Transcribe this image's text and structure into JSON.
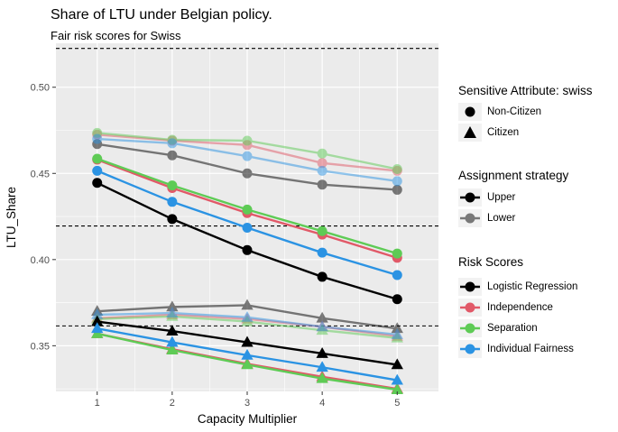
{
  "chart_data": {
    "type": "line",
    "title": "Share of LTU under Belgian policy.",
    "subtitle": "Fair risk scores for Swiss",
    "xlabel": "Capacity Multiplier",
    "ylabel": "LTU_Share",
    "x": [
      1,
      2,
      3,
      4,
      5
    ],
    "xlim": [
      0.45,
      5.55
    ],
    "ylim": [
      0.3235,
      0.5255
    ],
    "xticks": [
      1,
      2,
      3,
      4,
      5
    ],
    "yticks": [
      0.35,
      0.4,
      0.45,
      0.5
    ],
    "ytick_labels": [
      "0.35",
      "0.40",
      "0.45",
      "0.50"
    ],
    "grid": true,
    "reference_lines": [
      0.5225,
      0.4195,
      0.3615
    ],
    "legend_position": "right",
    "colors": {
      "logistic_regression": "#000000",
      "independence": "#e15968",
      "separation": "#5ecb55",
      "individual_fairness": "#2b93e3",
      "panel_background": "#ebebeb",
      "grid": "#ffffff"
    },
    "series": [
      {
        "score": "Logistic Regression",
        "strategy": "Upper",
        "attribute": "Non-Citizen",
        "values": [
          0.4445,
          0.4235,
          0.4055,
          0.39,
          0.377
        ]
      },
      {
        "score": "Independence",
        "strategy": "Upper",
        "attribute": "Non-Citizen",
        "values": [
          0.458,
          0.4415,
          0.427,
          0.4145,
          0.401
        ]
      },
      {
        "score": "Separation",
        "strategy": "Upper",
        "attribute": "Non-Citizen",
        "values": [
          0.4585,
          0.443,
          0.429,
          0.4165,
          0.4035
        ]
      },
      {
        "score": "Individual Fairness",
        "strategy": "Upper",
        "attribute": "Non-Citizen",
        "values": [
          0.4515,
          0.4335,
          0.4185,
          0.404,
          0.391
        ]
      },
      {
        "score": "Logistic Regression",
        "strategy": "Lower",
        "attribute": "Non-Citizen",
        "values": [
          0.467,
          0.4605,
          0.45,
          0.4435,
          0.4405
        ]
      },
      {
        "score": "Independence",
        "strategy": "Lower",
        "attribute": "Non-Citizen",
        "values": [
          0.4725,
          0.469,
          0.4665,
          0.456,
          0.4515
        ]
      },
      {
        "score": "Separation",
        "strategy": "Lower",
        "attribute": "Non-Citizen",
        "values": [
          0.4735,
          0.4695,
          0.469,
          0.4615,
          0.4525
        ]
      },
      {
        "score": "Individual Fairness",
        "strategy": "Lower",
        "attribute": "Non-Citizen",
        "values": [
          0.47,
          0.4675,
          0.46,
          0.4515,
          0.4455
        ]
      },
      {
        "score": "Logistic Regression",
        "strategy": "Upper",
        "attribute": "Citizen",
        "values": [
          0.364,
          0.3585,
          0.352,
          0.3455,
          0.339
        ]
      },
      {
        "score": "Independence",
        "strategy": "Upper",
        "attribute": "Citizen",
        "values": [
          0.357,
          0.348,
          0.3395,
          0.332,
          0.325
        ]
      },
      {
        "score": "Separation",
        "strategy": "Upper",
        "attribute": "Citizen",
        "values": [
          0.357,
          0.3475,
          0.339,
          0.331,
          0.3245
        ]
      },
      {
        "score": "Individual Fairness",
        "strategy": "Upper",
        "attribute": "Citizen",
        "values": [
          0.36,
          0.352,
          0.3445,
          0.3375,
          0.33
        ]
      },
      {
        "score": "Logistic Regression",
        "strategy": "Lower",
        "attribute": "Citizen",
        "values": [
          0.37,
          0.3725,
          0.3735,
          0.366,
          0.36
        ]
      },
      {
        "score": "Independence",
        "strategy": "Lower",
        "attribute": "Citizen",
        "values": [
          0.366,
          0.368,
          0.3655,
          0.361,
          0.3555
        ]
      },
      {
        "score": "Separation",
        "strategy": "Lower",
        "attribute": "Citizen",
        "values": [
          0.3655,
          0.367,
          0.364,
          0.359,
          0.3545
        ]
      },
      {
        "score": "Individual Fairness",
        "strategy": "Lower",
        "attribute": "Citizen",
        "values": [
          0.368,
          0.369,
          0.3665,
          0.361,
          0.3565
        ]
      }
    ],
    "legends": [
      {
        "title": "Sensitive Attribute: swiss",
        "items": [
          {
            "label": "Non-Citizen",
            "shape": "circle"
          },
          {
            "label": "Citizen",
            "shape": "triangle"
          }
        ]
      },
      {
        "title": "Assignment strategy",
        "items": [
          {
            "label": "Upper",
            "alpha": 1
          },
          {
            "label": "Lower",
            "alpha": 0.5
          }
        ]
      },
      {
        "title": "Risk Scores",
        "items": [
          {
            "label": "Logistic Regression",
            "color": "#000000"
          },
          {
            "label": "Independence",
            "color": "#e15968"
          },
          {
            "label": "Separation",
            "color": "#5ecb55"
          },
          {
            "label": "Individual Fairness",
            "color": "#2b93e3"
          }
        ]
      }
    ]
  }
}
